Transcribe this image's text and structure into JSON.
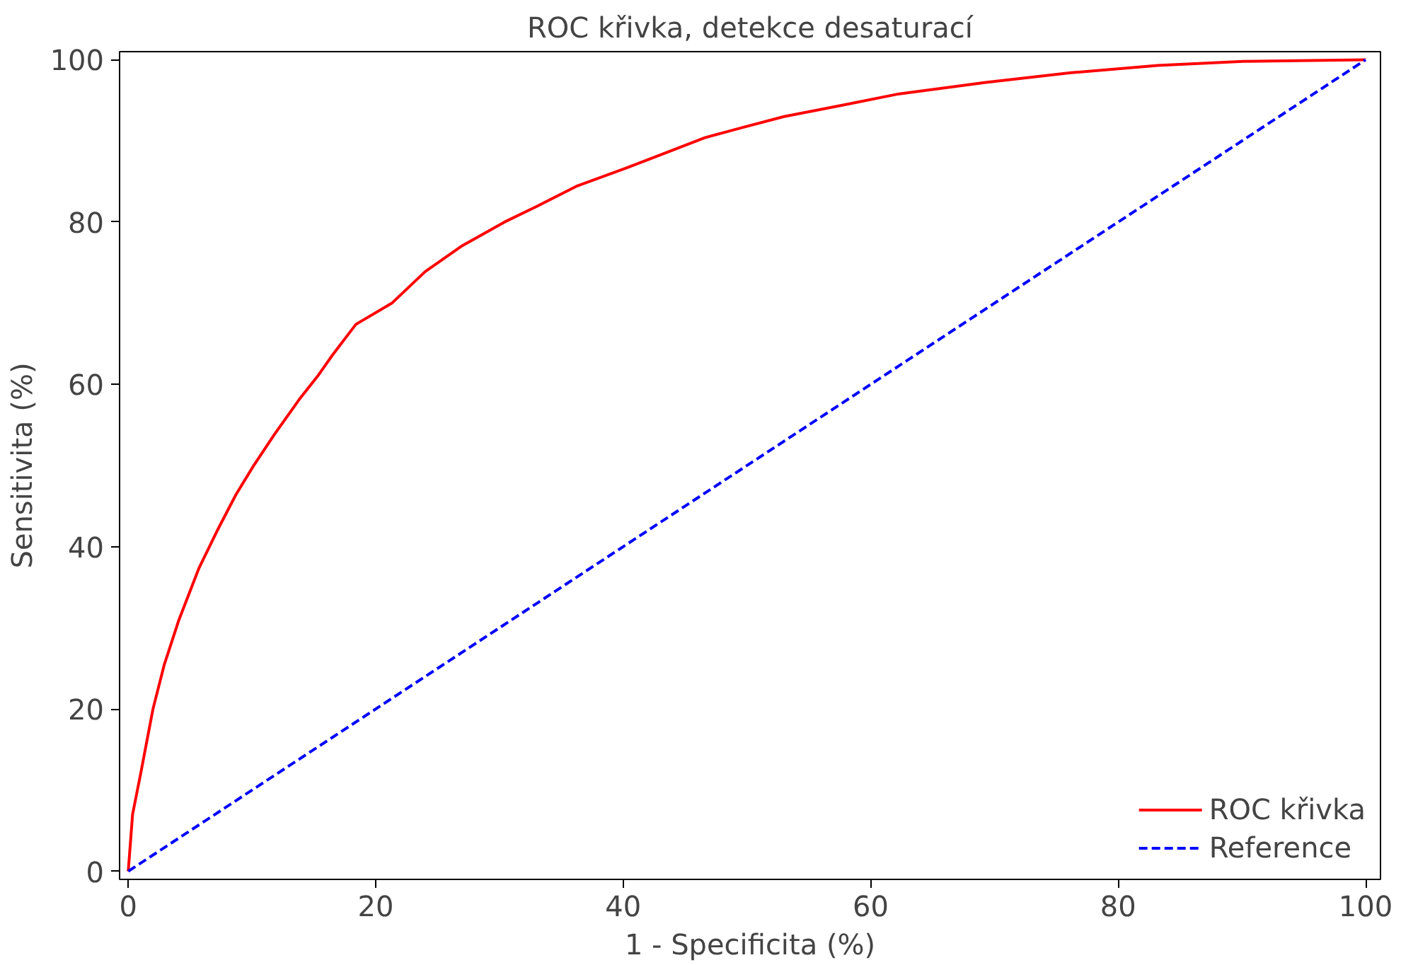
{
  "chart_data": {
    "type": "line",
    "title": "ROC křivka, detekce desaturací",
    "xlabel": "1 - Specificita (%)",
    "ylabel": "Sensitivita (%)",
    "series": [
      {
        "name": "ROC křivka",
        "color": "#ff0000",
        "line_style": "solid",
        "x": [
          0,
          0.35,
          1,
          2,
          2.9,
          4.1,
          5.7,
          7.2,
          8.7,
          10.1,
          11.8,
          13.8,
          15.3,
          16.5,
          18.4,
          21.3,
          24,
          26.9,
          30.4,
          33.1,
          36.2,
          40.3,
          43.2,
          46.6,
          49.5,
          53,
          57.7,
          62.3,
          69.3,
          76.2,
          83.2,
          90.1,
          100
        ],
        "values": [
          0,
          7,
          12,
          20,
          25.4,
          31,
          37.3,
          42,
          46.4,
          49.9,
          53.8,
          58.1,
          61,
          63.6,
          67.4,
          70,
          73.9,
          77,
          80,
          82,
          84.4,
          86.7,
          88.4,
          90.4,
          91.6,
          93,
          94.4,
          95.8,
          97.2,
          98.4,
          99.3,
          99.8,
          100
        ]
      },
      {
        "name": "Reference",
        "color": "#0000ff",
        "line_style": "dashed",
        "x": [
          0,
          100
        ],
        "values": [
          0,
          100
        ]
      }
    ],
    "xlim": [
      -0.7,
      101.2
    ],
    "ylim": [
      -1,
      101
    ],
    "xticks": [
      0,
      20,
      40,
      60,
      80,
      100
    ],
    "yticks": [
      0,
      20,
      40,
      60,
      80,
      100
    ],
    "legend": "bottom right",
    "grid": false
  }
}
